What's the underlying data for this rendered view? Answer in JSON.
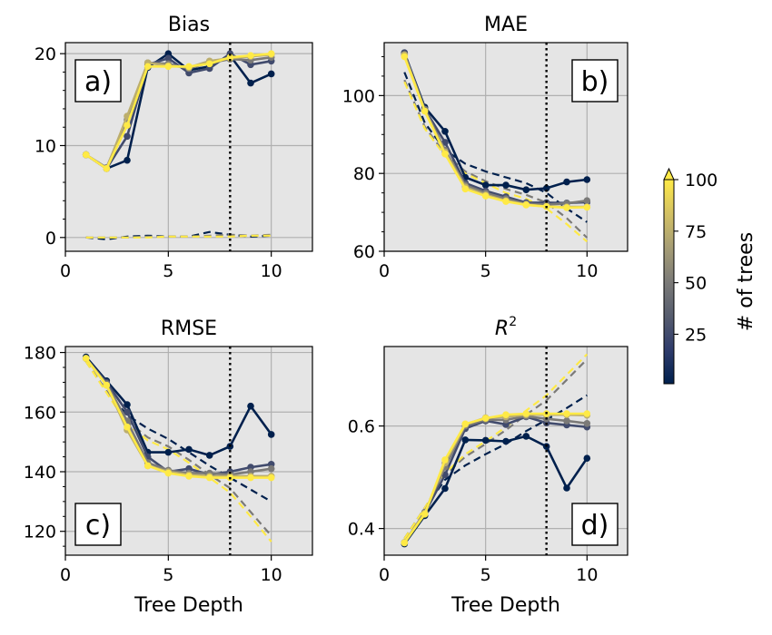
{
  "figure": {
    "colorbar": {
      "label": "# of trees",
      "min": 1,
      "max": 100,
      "ticks": [
        25,
        50,
        75,
        100
      ],
      "colors": [
        "#00204d",
        "#2f3c6c",
        "#575d6e",
        "#7c7b78",
        "#a69d75",
        "#d3c164",
        "#ffea46"
      ]
    },
    "vline_x": 8
  },
  "chart_data": [
    {
      "type": "line",
      "title": "Bias",
      "panel_label": "a)",
      "xlabel": "",
      "xlim": [
        0,
        12
      ],
      "ylim": [
        -1.5,
        21.2
      ],
      "xticks": [
        0,
        5,
        10
      ],
      "yticks": [
        0,
        10,
        20
      ],
      "yminor": [
        2,
        4,
        6,
        8,
        12,
        14,
        16,
        18
      ],
      "series": [
        {
          "trees": 1,
          "x": [
            1,
            2,
            3,
            4,
            5,
            6,
            7,
            8,
            9,
            10
          ],
          "y": [
            9.0,
            7.5,
            8.4,
            18.5,
            20.0,
            18.2,
            18.6,
            19.8,
            16.8,
            17.8
          ]
        },
        {
          "trees": 25,
          "x": [
            1,
            2,
            3,
            4,
            5,
            6,
            7,
            8,
            9,
            10
          ],
          "y": [
            9.0,
            7.5,
            11.0,
            18.8,
            19.5,
            17.9,
            18.4,
            20.0,
            18.8,
            19.2
          ]
        },
        {
          "trees": 50,
          "x": [
            1,
            2,
            3,
            4,
            5,
            6,
            7,
            8,
            9,
            10
          ],
          "y": [
            9.0,
            7.6,
            12.8,
            19.0,
            18.9,
            18.4,
            19.0,
            19.4,
            19.3,
            19.6
          ]
        },
        {
          "trees": 75,
          "x": [
            1,
            2,
            3,
            4,
            5,
            6,
            7,
            8,
            9,
            10
          ],
          "y": [
            9.0,
            7.5,
            13.2,
            19.0,
            18.7,
            18.5,
            19.2,
            19.5,
            19.7,
            19.9
          ]
        },
        {
          "trees": 100,
          "x": [
            1,
            2,
            3,
            4,
            5,
            6,
            7,
            8,
            9,
            10
          ],
          "y": [
            9.0,
            7.5,
            12.2,
            18.6,
            18.6,
            18.6,
            18.9,
            19.6,
            19.8,
            20.0
          ]
        }
      ],
      "trend_lines": [
        {
          "trees": 1,
          "x": [
            1,
            2,
            3,
            4,
            5,
            6,
            7,
            8,
            9,
            10
          ],
          "y": [
            0.0,
            -0.2,
            0.1,
            0.2,
            0.1,
            0.1,
            0.6,
            0.3,
            0.1,
            0.2
          ]
        },
        {
          "trees": 50,
          "x": [
            1,
            2,
            3,
            4,
            5,
            6,
            7,
            8,
            9,
            10
          ],
          "y": [
            0.0,
            0.0,
            0.0,
            0.1,
            0.1,
            0.1,
            0.2,
            0.3,
            0.2,
            0.3
          ]
        },
        {
          "trees": 100,
          "x": [
            1,
            2,
            3,
            4,
            5,
            6,
            7,
            8,
            9,
            10
          ],
          "y": [
            0.0,
            0.0,
            0.0,
            0.0,
            0.1,
            0.1,
            0.1,
            0.1,
            0.2,
            0.2
          ]
        }
      ]
    },
    {
      "type": "line",
      "title": "MAE",
      "panel_label": "b)",
      "xlabel": "",
      "xlim": [
        0,
        12
      ],
      "ylim": [
        60,
        113.6
      ],
      "xticks": [
        0,
        5,
        10
      ],
      "yticks": [
        60,
        80,
        100
      ],
      "yminor": [
        65,
        70,
        75,
        85,
        90,
        95,
        105,
        110
      ],
      "series": [
        {
          "trees": 1,
          "x": [
            1,
            2,
            3,
            4,
            5,
            6,
            7,
            8,
            9,
            10
          ],
          "y": [
            111.0,
            97.0,
            90.8,
            79.0,
            77.0,
            77.0,
            75.8,
            76.2,
            77.8,
            78.4
          ]
        },
        {
          "trees": 25,
          "x": [
            1,
            2,
            3,
            4,
            5,
            6,
            7,
            8,
            9,
            10
          ],
          "y": [
            111.0,
            96.5,
            88.0,
            77.5,
            75.5,
            74.0,
            72.5,
            72.5,
            72.4,
            72.6
          ]
        },
        {
          "trees": 50,
          "x": [
            1,
            2,
            3,
            4,
            5,
            6,
            7,
            8,
            9,
            10
          ],
          "y": [
            110.5,
            96.5,
            86.0,
            77.0,
            75.0,
            73.5,
            72.2,
            72.0,
            72.3,
            73.0
          ]
        },
        {
          "trees": 75,
          "x": [
            1,
            2,
            3,
            4,
            5,
            6,
            7,
            8,
            9,
            10
          ],
          "y": [
            110.5,
            96.0,
            85.5,
            76.5,
            74.5,
            73.0,
            72.0,
            71.5,
            71.4,
            71.4
          ]
        },
        {
          "trees": 100,
          "x": [
            1,
            2,
            3,
            4,
            5,
            6,
            7,
            8,
            9,
            10
          ],
          "y": [
            110.0,
            96.0,
            85.0,
            76.0,
            74.2,
            72.8,
            71.9,
            71.5,
            71.2,
            71.3
          ]
        }
      ],
      "trend_lines": [
        {
          "trees": 1,
          "x": [
            1,
            2,
            3,
            4,
            5,
            6,
            7,
            8,
            9,
            10
          ],
          "y": [
            106.0,
            93.0,
            86.0,
            82.5,
            80.5,
            79.0,
            77.5,
            75.0,
            71.0,
            67.5
          ]
        },
        {
          "trees": 50,
          "x": [
            1,
            2,
            3,
            4,
            5,
            6,
            7,
            8,
            9,
            10
          ],
          "y": [
            104.0,
            92.0,
            85.0,
            80.5,
            78.0,
            76.0,
            74.5,
            72.5,
            68.5,
            63.5
          ]
        },
        {
          "trees": 100,
          "x": [
            1,
            2,
            3,
            4,
            5,
            6,
            7,
            8,
            9,
            10
          ],
          "y": [
            103.5,
            91.5,
            84.5,
            80.0,
            77.5,
            75.0,
            73.5,
            71.0,
            67.0,
            62.5
          ]
        }
      ]
    },
    {
      "type": "line",
      "title": "RMSE",
      "panel_label": "c)",
      "xlabel": "Tree Depth",
      "xlim": [
        0,
        12
      ],
      "ylim": [
        112,
        182
      ],
      "xticks": [
        0,
        5,
        10
      ],
      "yticks": [
        120,
        140,
        160,
        180
      ],
      "yminor": [
        115,
        125,
        130,
        135,
        145,
        150,
        155,
        165,
        170,
        175
      ],
      "series": [
        {
          "trees": 1,
          "x": [
            1,
            2,
            3,
            4,
            5,
            6,
            7,
            8,
            9,
            10
          ],
          "y": [
            178.5,
            170.5,
            162.5,
            146.5,
            146.5,
            147.5,
            145.5,
            148.5,
            162.0,
            152.5
          ]
        },
        {
          "trees": 25,
          "x": [
            1,
            2,
            3,
            4,
            5,
            6,
            7,
            8,
            9,
            10
          ],
          "y": [
            178.0,
            170.0,
            160.0,
            145.0,
            140.0,
            141.0,
            139.0,
            140.0,
            141.5,
            142.5
          ]
        },
        {
          "trees": 50,
          "x": [
            1,
            2,
            3,
            4,
            5,
            6,
            7,
            8,
            9,
            10
          ],
          "y": [
            178.0,
            169.5,
            157.0,
            143.0,
            140.5,
            139.5,
            139.5,
            139.0,
            140.0,
            141.0
          ]
        },
        {
          "trees": 75,
          "x": [
            1,
            2,
            3,
            4,
            5,
            6,
            7,
            8,
            9,
            10
          ],
          "y": [
            178.0,
            169.0,
            154.0,
            142.0,
            140.0,
            139.0,
            138.5,
            138.5,
            138.5,
            138.5
          ]
        },
        {
          "trees": 100,
          "x": [
            1,
            2,
            3,
            4,
            5,
            6,
            7,
            8,
            9,
            10
          ],
          "y": [
            178.0,
            169.0,
            155.0,
            142.0,
            139.5,
            138.5,
            138.0,
            138.0,
            138.0,
            138.0
          ]
        }
      ],
      "trend_lines": [
        {
          "trees": 1,
          "x": [
            1,
            2,
            3,
            4,
            5,
            6,
            7,
            8,
            9,
            10
          ],
          "y": [
            177.0,
            167.0,
            159.0,
            154.5,
            151.0,
            146.5,
            142.0,
            138.0,
            134.0,
            130.0
          ]
        },
        {
          "trees": 50,
          "x": [
            1,
            2,
            3,
            4,
            5,
            6,
            7,
            8,
            9,
            10
          ],
          "y": [
            177.0,
            167.0,
            157.0,
            151.5,
            148.5,
            144.0,
            139.0,
            134.5,
            126.5,
            118.5
          ]
        },
        {
          "trees": 100,
          "x": [
            1,
            2,
            3,
            4,
            5,
            6,
            7,
            8,
            9,
            10
          ],
          "y": [
            177.0,
            166.5,
            156.0,
            150.5,
            147.5,
            143.0,
            138.0,
            133.0,
            125.0,
            116.5
          ]
        }
      ]
    },
    {
      "type": "line",
      "title": "R^2",
      "title_base": "R",
      "title_sup": "2",
      "panel_label": "d)",
      "xlabel": "Tree Depth",
      "xlim": [
        0,
        12
      ],
      "ylim": [
        0.348,
        0.755
      ],
      "xticks": [
        0,
        5,
        10
      ],
      "yticks": [
        0.4,
        0.6
      ],
      "yticklabels": [
        "0.4",
        "0.6"
      ],
      "yminor": [],
      "series": [
        {
          "trees": 1,
          "x": [
            1,
            2,
            3,
            4,
            5,
            6,
            7,
            8,
            9,
            10
          ],
          "y": [
            0.37,
            0.425,
            0.478,
            0.573,
            0.572,
            0.57,
            0.58,
            0.56,
            0.479,
            0.537
          ]
        },
        {
          "trees": 25,
          "x": [
            1,
            2,
            3,
            4,
            5,
            6,
            7,
            8,
            9,
            10
          ],
          "y": [
            0.372,
            0.43,
            0.505,
            0.595,
            0.61,
            0.603,
            0.618,
            0.606,
            0.602,
            0.598
          ]
        },
        {
          "trees": 50,
          "x": [
            1,
            2,
            3,
            4,
            5,
            6,
            7,
            8,
            9,
            10
          ],
          "y": [
            0.372,
            0.432,
            0.52,
            0.6,
            0.612,
            0.612,
            0.619,
            0.614,
            0.61,
            0.605
          ]
        },
        {
          "trees": 75,
          "x": [
            1,
            2,
            3,
            4,
            5,
            6,
            7,
            8,
            9,
            10
          ],
          "y": [
            0.373,
            0.43,
            0.528,
            0.603,
            0.616,
            0.618,
            0.622,
            0.622,
            0.622,
            0.621
          ]
        },
        {
          "trees": 100,
          "x": [
            1,
            2,
            3,
            4,
            5,
            6,
            7,
            8,
            9,
            10
          ],
          "y": [
            0.372,
            0.428,
            0.534,
            0.604,
            0.615,
            0.622,
            0.624,
            0.624,
            0.624,
            0.624
          ]
        }
      ],
      "trend_lines": [
        {
          "trees": 1,
          "x": [
            1,
            2,
            3,
            4,
            5,
            6,
            7,
            8,
            9,
            10
          ],
          "y": [
            0.38,
            0.44,
            0.495,
            0.523,
            0.545,
            0.565,
            0.59,
            0.612,
            0.635,
            0.66
          ]
        },
        {
          "trees": 50,
          "x": [
            1,
            2,
            3,
            4,
            5,
            6,
            7,
            8,
            9,
            10
          ],
          "y": [
            0.38,
            0.44,
            0.505,
            0.54,
            0.565,
            0.592,
            0.622,
            0.65,
            0.69,
            0.73
          ]
        },
        {
          "trees": 100,
          "x": [
            1,
            2,
            3,
            4,
            5,
            6,
            7,
            8,
            9,
            10
          ],
          "y": [
            0.38,
            0.44,
            0.508,
            0.545,
            0.57,
            0.598,
            0.63,
            0.66,
            0.7,
            0.74
          ]
        }
      ]
    }
  ]
}
